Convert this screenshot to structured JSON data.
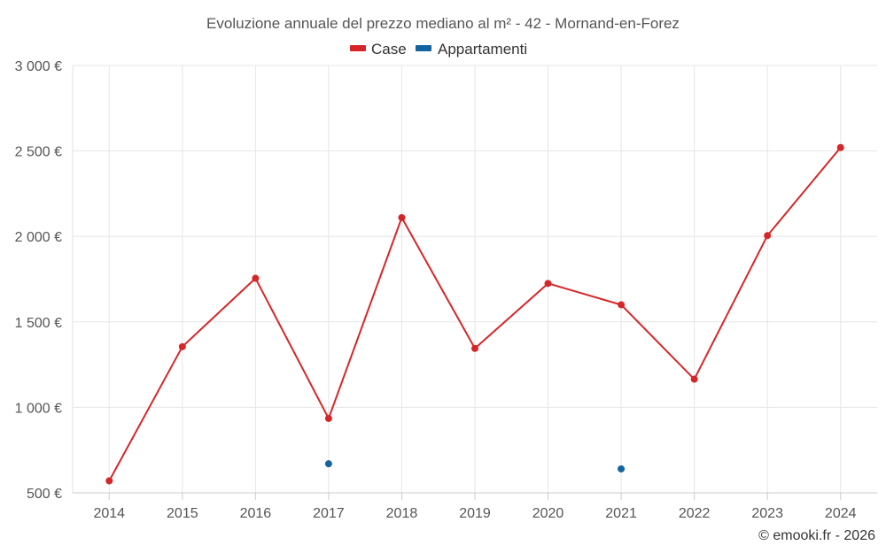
{
  "chart_data": {
    "type": "line",
    "title": "Evoluzione annuale del prezzo mediano al m² - 42 - Mornand-en-Forez",
    "categories": [
      "2014",
      "2015",
      "2016",
      "2017",
      "2018",
      "2019",
      "2020",
      "2021",
      "2022",
      "2023",
      "2024"
    ],
    "y_ticks": [
      "500 €",
      "1 000 €",
      "1 500 €",
      "2 000 €",
      "2 500 €",
      "3 000 €"
    ],
    "ylim": [
      500,
      3000
    ],
    "grid": true,
    "legend_position": "top-center",
    "series": [
      {
        "name": "Case",
        "color": "#d62728",
        "values": [
          570,
          1355,
          1755,
          935,
          2110,
          1345,
          1725,
          1600,
          1165,
          2005,
          2520
        ],
        "connected": true
      },
      {
        "name": "Appartamenti",
        "color": "#1464a0",
        "values": [
          null,
          null,
          null,
          670,
          null,
          null,
          null,
          640,
          null,
          null,
          null
        ],
        "connected": false
      }
    ],
    "credit": "© emooki.fr - 2026"
  }
}
